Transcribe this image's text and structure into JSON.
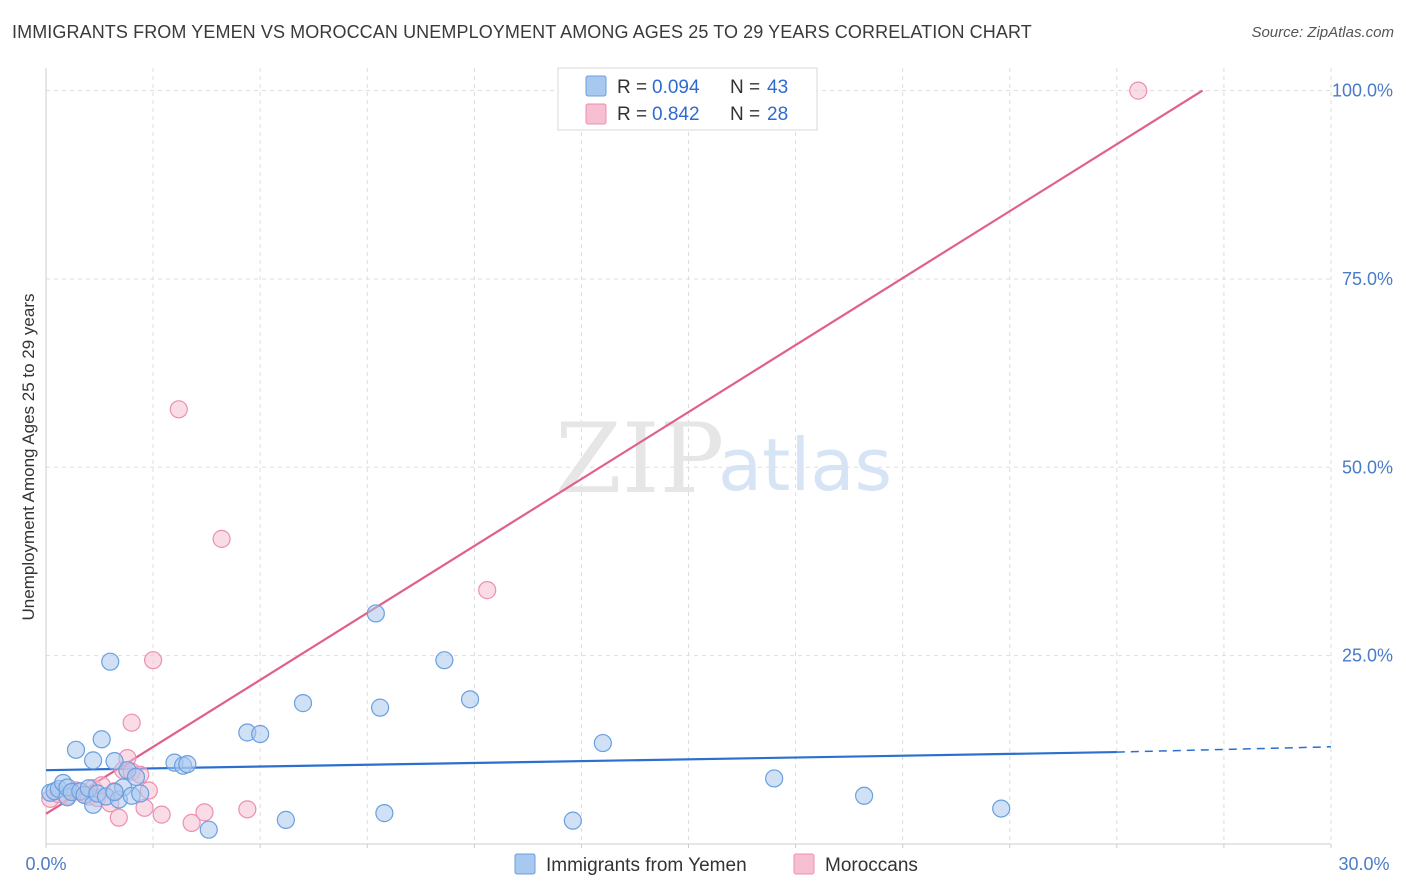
{
  "header": {
    "title": "IMMIGRANTS FROM YEMEN VS MOROCCAN UNEMPLOYMENT AMONG AGES 25 TO 29 YEARS CORRELATION CHART",
    "source": "Source: ZipAtlas.com"
  },
  "watermark": {
    "zip": "ZIP",
    "atlas": "atlas"
  },
  "legend": {
    "series1": {
      "r_label": "R =",
      "r_value": "0.094",
      "n_label": "N =",
      "n_value": "43"
    },
    "series2": {
      "r_label": "R =",
      "r_value": "0.842",
      "n_label": "N =",
      "n_value": "28"
    }
  },
  "colors": {
    "blue_fill": "#a9c8ef",
    "blue_stroke": "#6a9fe0",
    "blue_line": "#2b6fcf",
    "pink_fill": "#f6bfd2",
    "pink_stroke": "#ec8fb1",
    "pink_line": "#e0608d",
    "grid": "#dddddd"
  },
  "chart_data": {
    "type": "scatter",
    "title": "IMMIGRANTS FROM YEMEN VS MOROCCAN UNEMPLOYMENT AMONG AGES 25 TO 29 YEARS CORRELATION CHART",
    "xlabel": "",
    "ylabel": "Unemployment Among Ages 25 to 29 years",
    "xlim": [
      0,
      30
    ],
    "ylim": [
      0,
      103
    ],
    "x_tick_labels": [
      "0.0%",
      "30.0%"
    ],
    "y_ticks": [
      25,
      50,
      75,
      100
    ],
    "y_tick_labels": [
      "25.0%",
      "50.0%",
      "75.0%",
      "100.0%"
    ],
    "grid": true,
    "legend_position": "top-center",
    "series": [
      {
        "name": "Immigrants from Yemen",
        "r": 0.094,
        "n": 43,
        "trend": {
          "x0": 0,
          "y0": 9.8,
          "x1": 25.0,
          "y1": 12.2,
          "dashed_to_x": 30,
          "dashed_to_y": 12.9
        },
        "points": [
          [
            0.1,
            6.8
          ],
          [
            0.2,
            7.0
          ],
          [
            0.3,
            7.3
          ],
          [
            0.4,
            8.1
          ],
          [
            0.5,
            6.2
          ],
          [
            0.5,
            7.5
          ],
          [
            0.6,
            6.9
          ],
          [
            0.7,
            12.5
          ],
          [
            0.8,
            7.0
          ],
          [
            0.9,
            6.5
          ],
          [
            1.0,
            7.4
          ],
          [
            1.1,
            11.1
          ],
          [
            1.1,
            5.2
          ],
          [
            1.2,
            6.7
          ],
          [
            1.3,
            13.9
          ],
          [
            1.4,
            6.3
          ],
          [
            1.5,
            24.2
          ],
          [
            1.6,
            11.0
          ],
          [
            1.7,
            5.9
          ],
          [
            1.8,
            7.5
          ],
          [
            1.9,
            9.8
          ],
          [
            2.0,
            6.4
          ],
          [
            2.1,
            8.9
          ],
          [
            2.2,
            6.7
          ],
          [
            3.0,
            10.8
          ],
          [
            3.2,
            10.4
          ],
          [
            3.3,
            10.6
          ],
          [
            3.8,
            1.9
          ],
          [
            4.7,
            14.8
          ],
          [
            5.0,
            14.6
          ],
          [
            5.6,
            3.2
          ],
          [
            6.0,
            18.7
          ],
          [
            7.7,
            30.6
          ],
          [
            7.8,
            18.1
          ],
          [
            7.9,
            4.1
          ],
          [
            9.3,
            24.4
          ],
          [
            9.9,
            19.2
          ],
          [
            12.3,
            3.1
          ],
          [
            13.0,
            13.4
          ],
          [
            17.0,
            8.7
          ],
          [
            19.1,
            6.4
          ],
          [
            22.3,
            4.7
          ],
          [
            1.6,
            6.9
          ]
        ]
      },
      {
        "name": "Moroccans",
        "r": 0.842,
        "n": 28,
        "trend": {
          "x0": 0,
          "y0": 4.0,
          "x1": 27.0,
          "y1": 100.0
        },
        "points": [
          [
            0.1,
            6.0
          ],
          [
            0.3,
            6.6
          ],
          [
            0.5,
            6.4
          ],
          [
            0.7,
            7.1
          ],
          [
            0.8,
            6.9
          ],
          [
            1.0,
            6.3
          ],
          [
            1.1,
            7.4
          ],
          [
            1.2,
            6.1
          ],
          [
            1.3,
            7.8
          ],
          [
            1.5,
            5.4
          ],
          [
            1.6,
            7.0
          ],
          [
            1.7,
            3.5
          ],
          [
            1.8,
            9.8
          ],
          [
            1.9,
            11.4
          ],
          [
            2.0,
            9.6
          ],
          [
            2.0,
            16.1
          ],
          [
            2.2,
            9.2
          ],
          [
            2.3,
            4.8
          ],
          [
            2.4,
            7.1
          ],
          [
            2.5,
            24.4
          ],
          [
            2.7,
            3.9
          ],
          [
            3.1,
            57.7
          ],
          [
            3.4,
            2.8
          ],
          [
            3.7,
            4.2
          ],
          [
            4.1,
            40.5
          ],
          [
            4.7,
            4.6
          ],
          [
            10.3,
            33.7
          ],
          [
            25.5,
            100.0
          ]
        ]
      }
    ]
  },
  "bottom_legend": {
    "series1_label": "Immigrants from Yemen",
    "series2_label": "Moroccans"
  }
}
